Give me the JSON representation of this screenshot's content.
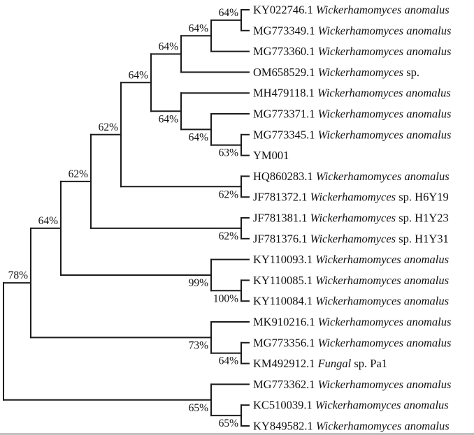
{
  "figure": {
    "kind": "phylogenetic-tree",
    "background": "#ffffff",
    "line_color": "#1b1b1b",
    "text_color": "#111111",
    "bottom_edge_color": "#c2c2c2",
    "tips_count": 21
  },
  "tree": {
    "root": {
      "children": [
        {
          "bootstrap": "78%",
          "children": [
            {
              "bootstrap": "64%",
              "children": [
                {
                  "bootstrap": "62%",
                  "children": [
                    {
                      "bootstrap": "62%",
                      "children": [
                        {
                          "bootstrap": "64%",
                          "children": [
                            {
                              "bootstrap": "64%",
                              "children": [
                                {
                                  "bootstrap": "64%",
                                  "children": [
                                    {
                                      "bootstrap": "64%",
                                      "children": [
                                        {
                                          "leaf": [
                                            {
                                              "t": "KY022746.1 ",
                                              "i": false
                                            },
                                            {
                                              "t": "Wickerhamomyces anomalus",
                                              "i": true
                                            }
                                          ]
                                        },
                                        {
                                          "leaf": [
                                            {
                                              "t": "MG773349.1 ",
                                              "i": false
                                            },
                                            {
                                              "t": "Wickerhamomyces anomalus",
                                              "i": true
                                            }
                                          ]
                                        }
                                      ]
                                    },
                                    {
                                      "leaf": [
                                        {
                                          "t": "MG773360.1 ",
                                          "i": false
                                        },
                                        {
                                          "t": "Wickerhamomyces anomalus",
                                          "i": true
                                        }
                                      ]
                                    }
                                  ]
                                },
                                {
                                  "leaf": [
                                    {
                                      "t": "OM658529.1 ",
                                      "i": false
                                    },
                                    {
                                      "t": "Wickerhamomyces",
                                      "i": true
                                    },
                                    {
                                      "t": " sp.",
                                      "i": false
                                    }
                                  ]
                                }
                              ]
                            },
                            {
                              "bootstrap": "64%",
                              "children": [
                                {
                                  "leaf": [
                                    {
                                      "t": "MH479118.1 ",
                                      "i": false
                                    },
                                    {
                                      "t": "Wickerhamomyces anomalus",
                                      "i": true
                                    }
                                  ]
                                },
                                {
                                  "bootstrap": "64%",
                                  "children": [
                                    {
                                      "leaf": [
                                        {
                                          "t": "MG773371.1 ",
                                          "i": false
                                        },
                                        {
                                          "t": "Wickerhamomyces anomalus",
                                          "i": true
                                        }
                                      ]
                                    },
                                    {
                                      "bootstrap": "63%",
                                      "children": [
                                        {
                                          "leaf": [
                                            {
                                              "t": "MG773345.1 ",
                                              "i": false
                                            },
                                            {
                                              "t": "Wickerhamomyces anomalus",
                                              "i": true
                                            }
                                          ]
                                        },
                                        {
                                          "leaf": [
                                            {
                                              "t": "YM001",
                                              "i": false
                                            }
                                          ]
                                        }
                                      ]
                                    }
                                  ]
                                }
                              ]
                            }
                          ]
                        },
                        {
                          "bootstrap": "62%",
                          "children": [
                            {
                              "leaf": [
                                {
                                  "t": "HQ860283.1 ",
                                  "i": false
                                },
                                {
                                  "t": "Wickerhamomyces anomalus",
                                  "i": true
                                }
                              ]
                            },
                            {
                              "leaf": [
                                {
                                  "t": "JF781372.1 ",
                                  "i": false
                                },
                                {
                                  "t": "Wickerhamomyces",
                                  "i": true
                                },
                                {
                                  "t": " sp. H6Y19",
                                  "i": false
                                }
                              ]
                            }
                          ]
                        }
                      ]
                    },
                    {
                      "bootstrap": "62%",
                      "children": [
                        {
                          "leaf": [
                            {
                              "t": "JF781381.1 ",
                              "i": false
                            },
                            {
                              "t": "Wickerhamomyces",
                              "i": true
                            },
                            {
                              "t": " sp. H1Y23",
                              "i": false
                            }
                          ]
                        },
                        {
                          "leaf": [
                            {
                              "t": "JF781376.1 ",
                              "i": false
                            },
                            {
                              "t": "Wickerhamomyces",
                              "i": true
                            },
                            {
                              "t": " sp. H1Y31",
                              "i": false
                            }
                          ]
                        }
                      ]
                    }
                  ]
                },
                {
                  "bootstrap": "99%",
                  "children": [
                    {
                      "leaf": [
                        {
                          "t": "KY110093.1 ",
                          "i": false
                        },
                        {
                          "t": "Wickerhamomyces anomalus",
                          "i": true
                        }
                      ]
                    },
                    {
                      "bootstrap": "100%",
                      "children": [
                        {
                          "leaf": [
                            {
                              "t": "KY110085.1 ",
                              "i": false
                            },
                            {
                              "t": "Wickerhamomyces anomalus",
                              "i": true
                            }
                          ]
                        },
                        {
                          "leaf": [
                            {
                              "t": "KY110084.1 ",
                              "i": false
                            },
                            {
                              "t": "Wickerhamomyces anomalus",
                              "i": true
                            }
                          ]
                        }
                      ]
                    }
                  ]
                }
              ]
            },
            {
              "bootstrap": "73%",
              "children": [
                {
                  "leaf": [
                    {
                      "t": "MK910216.1 ",
                      "i": false
                    },
                    {
                      "t": "Wickerhamomyces anomalus",
                      "i": true
                    }
                  ]
                },
                {
                  "bootstrap": "64%",
                  "children": [
                    {
                      "leaf": [
                        {
                          "t": "MG773356.1 ",
                          "i": false
                        },
                        {
                          "t": "Wickerhamomyces anomalus",
                          "i": true
                        }
                      ]
                    },
                    {
                      "leaf": [
                        {
                          "t": "KM492912.1 ",
                          "i": false
                        },
                        {
                          "t": "Fungal",
                          "i": true
                        },
                        {
                          "t": " sp. Pa1",
                          "i": false
                        }
                      ]
                    }
                  ]
                }
              ]
            }
          ]
        },
        {
          "bootstrap": "65%",
          "children": [
            {
              "leaf": [
                {
                  "t": "MG773362.1 ",
                  "i": false
                },
                {
                  "t": "Wickerhamomyces anomalus",
                  "i": true
                }
              ]
            },
            {
              "bootstrap": "65%",
              "children": [
                {
                  "leaf": [
                    {
                      "t": "KC510039.1 ",
                      "i": false
                    },
                    {
                      "t": "Wickerhamomyces anomalus",
                      "i": true
                    }
                  ]
                },
                {
                  "leaf": [
                    {
                      "t": "KY849582.1 ",
                      "i": false
                    },
                    {
                      "t": "Wickerhamomyces anomalus",
                      "i": true
                    }
                  ]
                }
              ]
            }
          ]
        }
      ]
    }
  }
}
